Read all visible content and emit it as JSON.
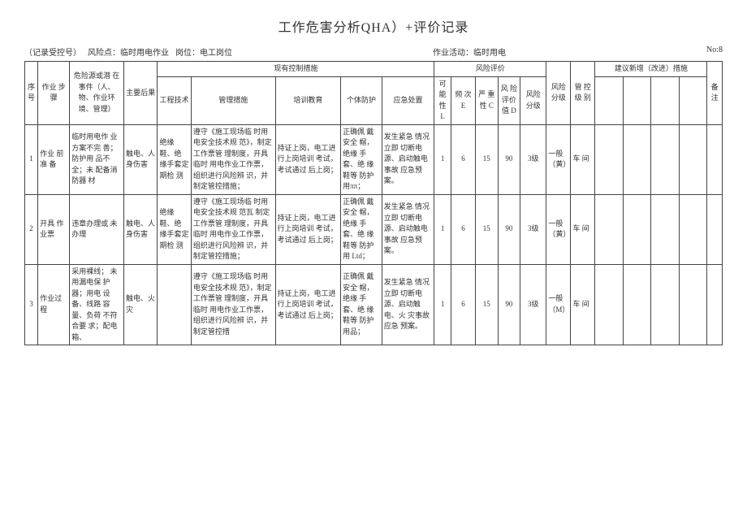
{
  "title": "工作危害分析QHA）+评价记录",
  "meta": {
    "record_no_label": "（记录受控号）",
    "risk_point_label": "风险点：",
    "risk_point": "临时用电作业",
    "post_label": "岗位：",
    "post": "电工岗位",
    "activity_label": "作业活动：",
    "activity": "临时用电",
    "no_label": "No:",
    "no": "8"
  },
  "headers": {
    "seq": "序号",
    "step": "作业 步骤",
    "hazard": "危险源或潜 在事件（人、物、作业环境、管理）",
    "consequence": "主要后果",
    "existing_controls": "现有控制措施",
    "eng": "工程技术",
    "mgmt": "管理措施",
    "train": "培训教育",
    "ppe": "个体防护",
    "emerg": "应急处置",
    "risk_eval": "风险评价",
    "L": "可能性 L",
    "E": "频 次 E",
    "C": "严 重性 C",
    "D": "风 险评价值 D",
    "lvl": "风险 分级",
    "riskLvl": "风险 分级",
    "mgLvl": "管 控级 别",
    "suggest": "建议新增（改进）措施",
    "s1": "",
    "s2": "",
    "s3": "",
    "s4": "",
    "note": "备注"
  },
  "rows": [
    {
      "seq": "1",
      "step": "作业 前准 备",
      "hazard": "临时用电作 业方案不完 善；防护用 品不全；未 配备消防器 材",
      "cons": "触电、人身伤害",
      "eng": "绝缘 鞋、绝 缘手套定 期检 测",
      "mgmt": "遵守《施工现场临 时用电安全技术规 范》，制定工作票管 理制度，开具临时 用电作业工作票， 组织进行风险辨 识，并制定管控措施；",
      "train": "持证上岗，电工进行上岗培训 考试，考试通过 后上岗；",
      "ppe": "正确佩 戴安全 帽，绝缘 手套、绝 缘鞋等 防护用ππ；",
      "emerg": "发生紧急 情况立即 切断电 源、启动触电事故 应急预 案。",
      "L": "1",
      "E": "6",
      "C": "15",
      "D": "90",
      "lvl": "3级",
      "riskLvl": "一般（黄）",
      "mgLvl": "车 间"
    },
    {
      "seq": "2",
      "step": "开具 作业票",
      "hazard": "违章办理或 未办理",
      "cons": "触电、人身伤害",
      "eng": "绝缘 鞋、绝 缘手套定 期检 测",
      "mgmt": "遵守《施工现场临 时用电安全技术规 范瓦 制定工作票管 理制度，开具临时 用电作业工作票， 组织进行风险辨 识，并制定管控措施；",
      "train": "持证上岗，电工进行上岗培训 考试，考试通过 后上岗；",
      "ppe": "正确佩 戴安全 帽，绝缘 手套、绝 缘鞋等 防护用 Ltd；",
      "emerg": "发生紧急 情况立即 切断电 源、启动触电事故 应急预 案。",
      "L": "1",
      "E": "6",
      "C": "15",
      "D": "90",
      "lvl": "3级",
      "riskLvl": "一般（黄）",
      "mgLvl": "车 间"
    },
    {
      "seq": "3",
      "step": "作业过程",
      "hazard": "采用裸线； 未用漏电保 护器；用电 设备、线路 容量、负荷 不符合要 求；配电箱、",
      "cons": "触电、火灾",
      "eng": "",
      "mgmt": "遵守《施工现场临 时用电安全技术规 范》，制定工作票管 理制度，开具临时 用电作业工作票， 组织进行风险辨 识，并制定管控措",
      "train": "持证上岗，电工进行上岗培训 考试，考试通过 后上岗；",
      "ppe": "正确佩 戴安全 帽，绝缘 手套、绝 缘鞋等 防护用品；",
      "emerg": "发生紧急 情况立即 切断电 源、启动触电、火 灾事故 应急 预案。",
      "L": "1",
      "E": "6",
      "C": "15",
      "D": "90",
      "lvl": "3级",
      "riskLvl": "一般（M）",
      "mgLvl": "车 间"
    }
  ]
}
